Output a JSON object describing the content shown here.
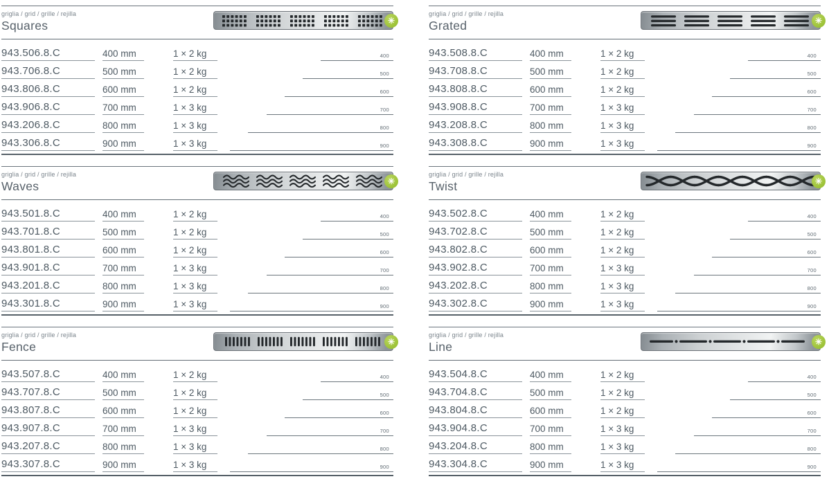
{
  "page": {
    "colors": {
      "accent_green": "#9cc237",
      "text": "#4d5962",
      "label_text": "#79838b",
      "rule": "#626c74",
      "underline": "#8a939a",
      "grille_dark": "#24282b",
      "metal_light": "#f1f3f3",
      "metal_dark": "#848b90"
    }
  },
  "category_label": "griglia / grid / grille / rejilla",
  "badge": {
    "icon": "asterisk-icon",
    "glyph": "✳"
  },
  "sections": [
    {
      "title": "Squares",
      "pattern": "squares",
      "rows": [
        {
          "code": "943.506.8.C",
          "length": "400 mm",
          "weight": "1 × 2 kg",
          "size_label": "400",
          "length_mm": 400
        },
        {
          "code": "943.706.8.C",
          "length": "500 mm",
          "weight": "1 × 2 kg",
          "size_label": "500",
          "length_mm": 500
        },
        {
          "code": "943.806.8.C",
          "length": "600 mm",
          "weight": "1 × 2 kg",
          "size_label": "600",
          "length_mm": 600
        },
        {
          "code": "943.906.8.C",
          "length": "700 mm",
          "weight": "1 × 3 kg",
          "size_label": "700",
          "length_mm": 700
        },
        {
          "code": "943.206.8.C",
          "length": "800 mm",
          "weight": "1 × 3 kg",
          "size_label": "800",
          "length_mm": 800
        },
        {
          "code": "943.306.8.C",
          "length": "900 mm",
          "weight": "1 × 3 kg",
          "size_label": "900",
          "length_mm": 900
        }
      ]
    },
    {
      "title": "Grated",
      "pattern": "grated",
      "rows": [
        {
          "code": "943.508.8.C",
          "length": "400 mm",
          "weight": "1 × 2 kg",
          "size_label": "400",
          "length_mm": 400
        },
        {
          "code": "943.708.8.C",
          "length": "500 mm",
          "weight": "1 × 2 kg",
          "size_label": "500",
          "length_mm": 500
        },
        {
          "code": "943.808.8.C",
          "length": "600 mm",
          "weight": "1 × 2 kg",
          "size_label": "600",
          "length_mm": 600
        },
        {
          "code": "943.908.8.C",
          "length": "700 mm",
          "weight": "1 × 3 kg",
          "size_label": "700",
          "length_mm": 700
        },
        {
          "code": "943.208.8.C",
          "length": "800 mm",
          "weight": "1 × 3 kg",
          "size_label": "800",
          "length_mm": 800
        },
        {
          "code": "943.308.8.C",
          "length": "900 mm",
          "weight": "1 × 3 kg",
          "size_label": "900",
          "length_mm": 900
        }
      ]
    },
    {
      "title": "Waves",
      "pattern": "waves",
      "rows": [
        {
          "code": "943.501.8.C",
          "length": "400 mm",
          "weight": "1 × 2 kg",
          "size_label": "400",
          "length_mm": 400
        },
        {
          "code": "943.701.8.C",
          "length": "500 mm",
          "weight": "1 × 2 kg",
          "size_label": "500",
          "length_mm": 500
        },
        {
          "code": "943.801.8.C",
          "length": "600 mm",
          "weight": "1 × 2 kg",
          "size_label": "600",
          "length_mm": 600
        },
        {
          "code": "943.901.8.C",
          "length": "700 mm",
          "weight": "1 × 3 kg",
          "size_label": "700",
          "length_mm": 700
        },
        {
          "code": "943.201.8.C",
          "length": "800 mm",
          "weight": "1 × 3 kg",
          "size_label": "800",
          "length_mm": 800
        },
        {
          "code": "943.301.8.C",
          "length": "900 mm",
          "weight": "1 × 3 kg",
          "size_label": "900",
          "length_mm": 900
        }
      ]
    },
    {
      "title": "Twist",
      "pattern": "twist",
      "rows": [
        {
          "code": "943.502.8.C",
          "length": "400 mm",
          "weight": "1 × 2 kg",
          "size_label": "400",
          "length_mm": 400
        },
        {
          "code": "943.702.8.C",
          "length": "500 mm",
          "weight": "1 × 2 kg",
          "size_label": "500",
          "length_mm": 500
        },
        {
          "code": "943.802.8.C",
          "length": "600 mm",
          "weight": "1 × 2 kg",
          "size_label": "600",
          "length_mm": 600
        },
        {
          "code": "943.902.8.C",
          "length": "700 mm",
          "weight": "1 × 3 kg",
          "size_label": "700",
          "length_mm": 700
        },
        {
          "code": "943.202.8.C",
          "length": "800 mm",
          "weight": "1 × 3 kg",
          "size_label": "800",
          "length_mm": 800
        },
        {
          "code": "943.302.8.C",
          "length": "900 mm",
          "weight": "1 × 3 kg",
          "size_label": "900",
          "length_mm": 900
        }
      ]
    },
    {
      "title": "Fence",
      "pattern": "fence",
      "rows": [
        {
          "code": "943.507.8.C",
          "length": "400 mm",
          "weight": "1 × 2 kg",
          "size_label": "400",
          "length_mm": 400
        },
        {
          "code": "943.707.8.C",
          "length": "500 mm",
          "weight": "1 × 2 kg",
          "size_label": "500",
          "length_mm": 500
        },
        {
          "code": "943.807.8.C",
          "length": "600 mm",
          "weight": "1 × 2 kg",
          "size_label": "600",
          "length_mm": 600
        },
        {
          "code": "943.907.8.C",
          "length": "700 mm",
          "weight": "1 × 3 kg",
          "size_label": "700",
          "length_mm": 700
        },
        {
          "code": "943.207.8.C",
          "length": "800 mm",
          "weight": "1 × 3 kg",
          "size_label": "800",
          "length_mm": 800
        },
        {
          "code": "943.307.8.C",
          "length": "900 mm",
          "weight": "1 × 3 kg",
          "size_label": "900",
          "length_mm": 900
        }
      ]
    },
    {
      "title": "Line",
      "pattern": "line",
      "rows": [
        {
          "code": "943.504.8.C",
          "length": "400 mm",
          "weight": "1 × 2 kg",
          "size_label": "400",
          "length_mm": 400
        },
        {
          "code": "943.704.8.C",
          "length": "500 mm",
          "weight": "1 × 2 kg",
          "size_label": "500",
          "length_mm": 500
        },
        {
          "code": "943.804.8.C",
          "length": "600 mm",
          "weight": "1 × 2 kg",
          "size_label": "600",
          "length_mm": 600
        },
        {
          "code": "943.904.8.C",
          "length": "700 mm",
          "weight": "1 × 3 kg",
          "size_label": "700",
          "length_mm": 700
        },
        {
          "code": "943.204.8.C",
          "length": "800 mm",
          "weight": "1 × 3 kg",
          "size_label": "800",
          "length_mm": 800
        },
        {
          "code": "943.304.8.C",
          "length": "900 mm",
          "weight": "1 × 3 kg",
          "size_label": "900",
          "length_mm": 900
        }
      ]
    }
  ]
}
